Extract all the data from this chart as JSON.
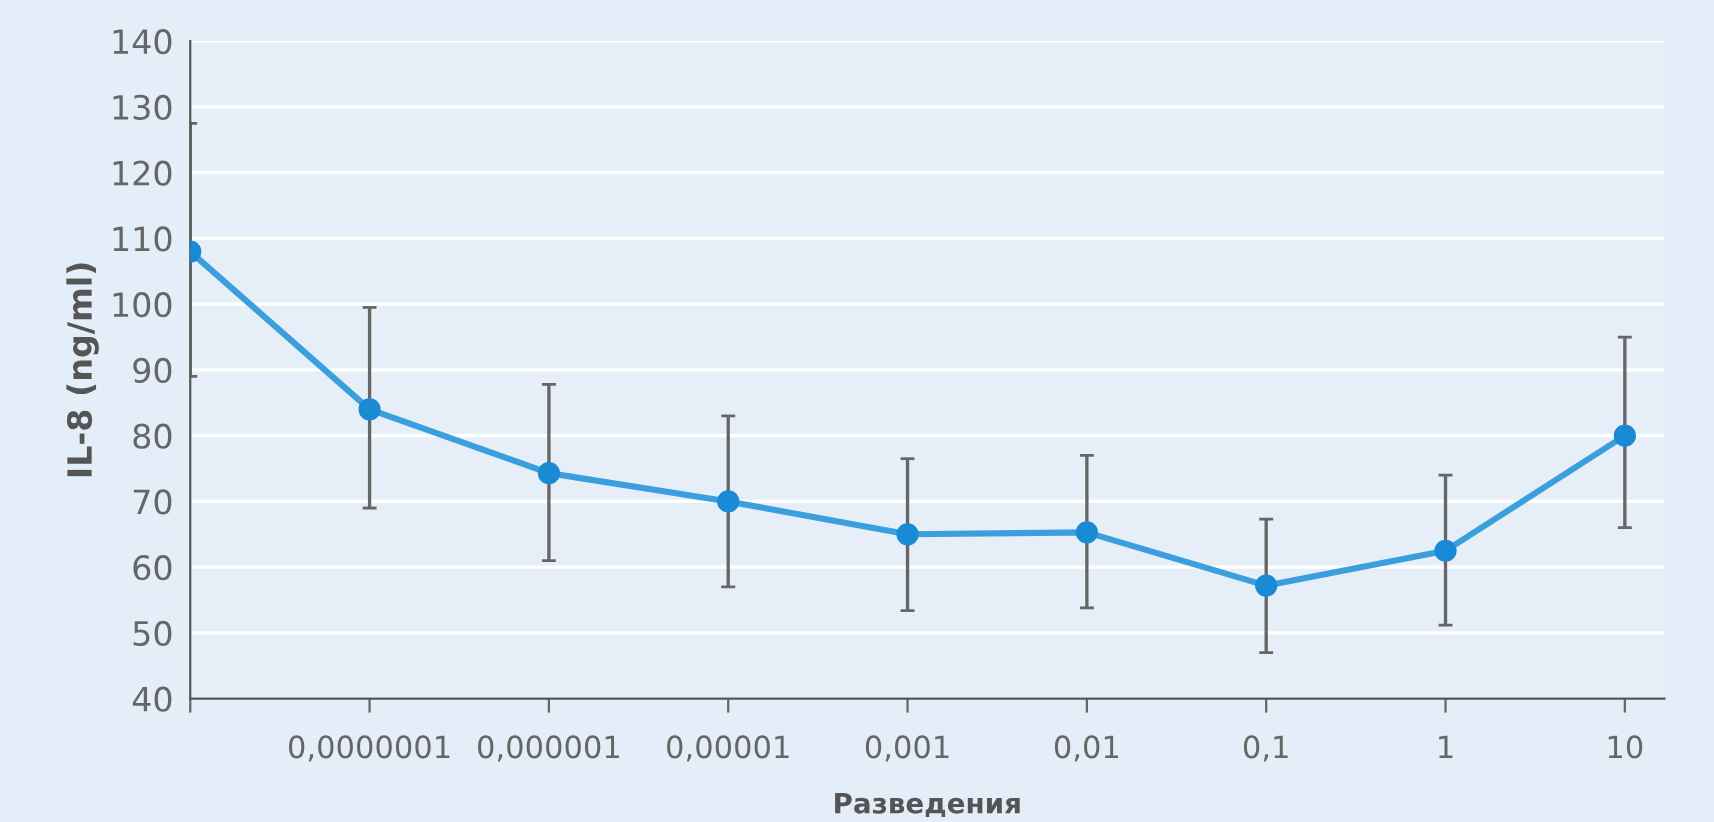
{
  "chart_data": {
    "type": "line",
    "ylabel": "IL-8 (ng/ml)",
    "xlabel": "Разведения",
    "categories": [
      null,
      "0,0000001",
      "0,000001",
      "0,00001",
      "0,001",
      "0,01",
      "0,1",
      "1",
      "10"
    ],
    "series": [
      {
        "color": "#3a9fdc",
        "values": [
          108,
          84,
          74.3,
          70,
          65,
          65.3,
          57.2,
          62.5,
          80
        ],
        "errors": [
          [
            89,
            127.5
          ],
          [
            69,
            99.5
          ],
          [
            61,
            87.8
          ],
          [
            57,
            83
          ],
          [
            53.4,
            76.5
          ],
          [
            53.8,
            77
          ],
          [
            47,
            67.3
          ],
          [
            51.2,
            74
          ],
          [
            66,
            95
          ]
        ]
      }
    ],
    "ylim": [
      40,
      140
    ],
    "yticks": [
      40,
      50,
      60,
      70,
      80,
      90,
      100,
      110,
      120,
      130,
      140
    ],
    "grid": "y",
    "marker": "circle",
    "line_style": "solid"
  }
}
